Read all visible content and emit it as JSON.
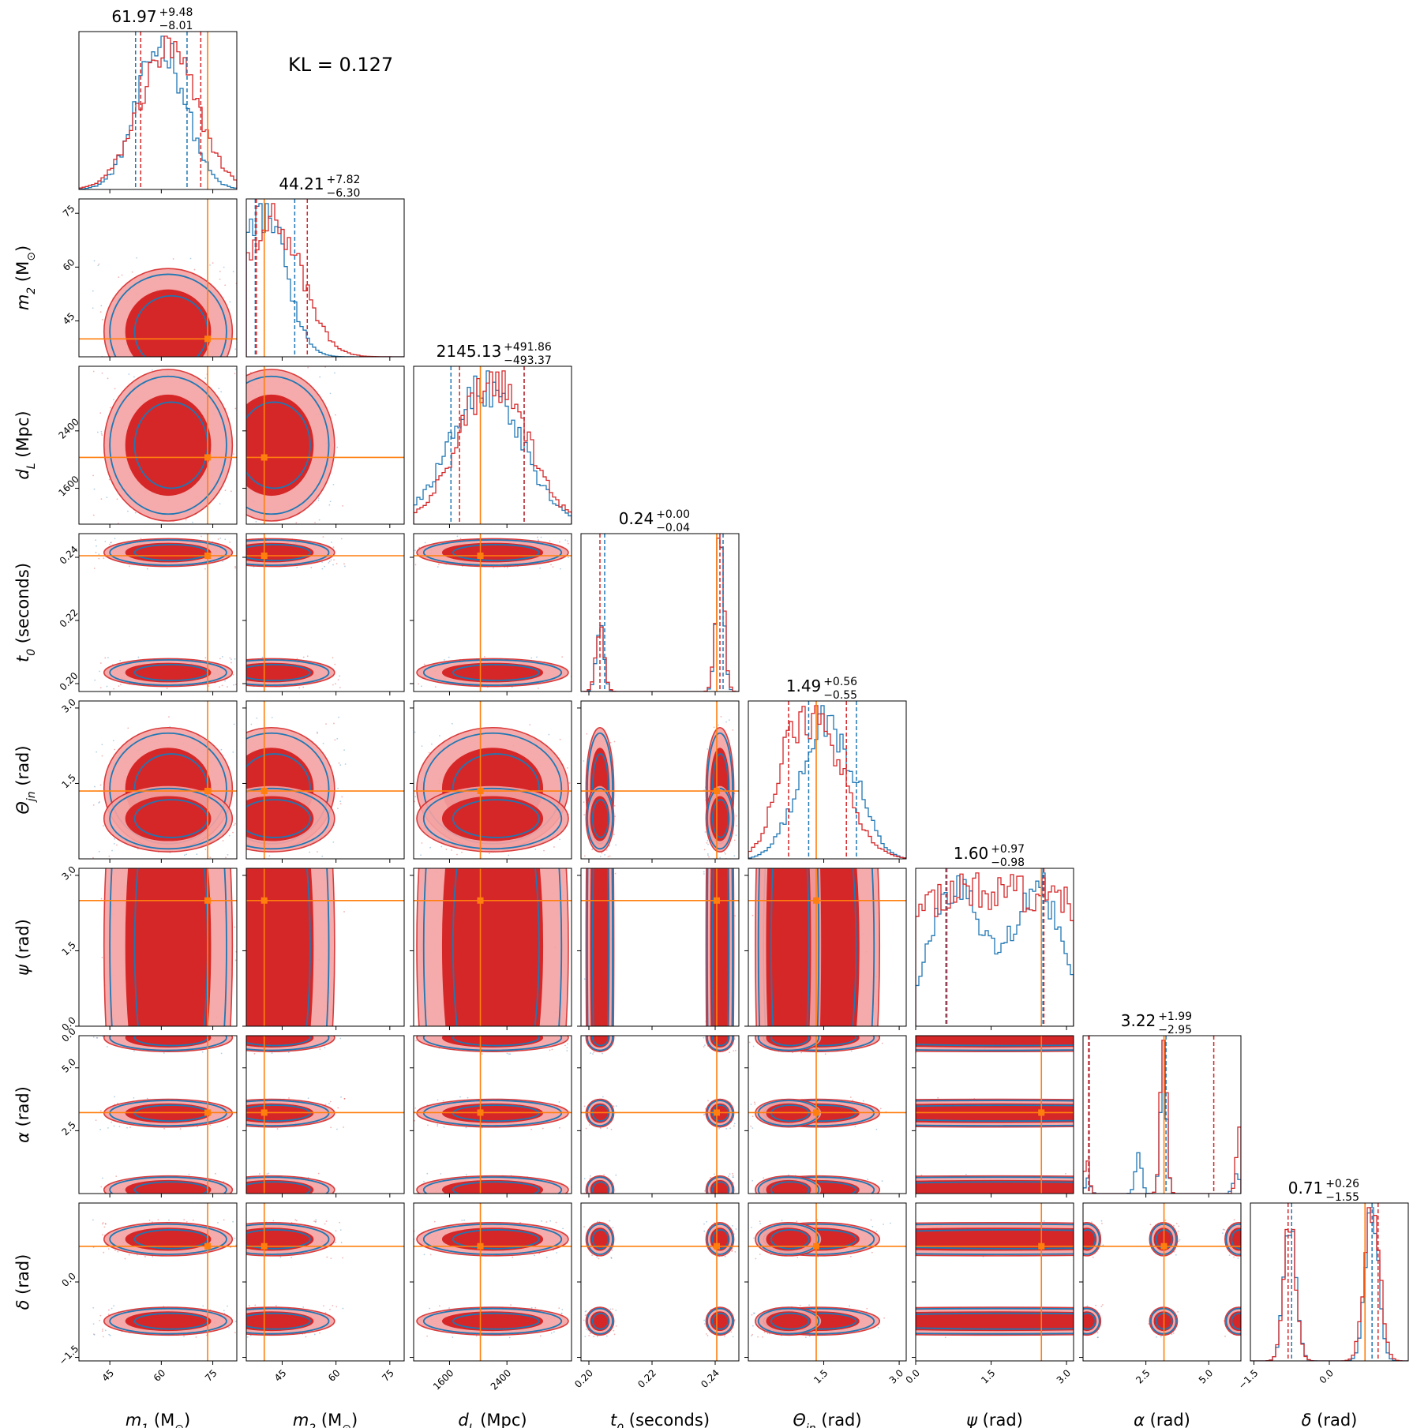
{
  "chart_data": {
    "type": "corner",
    "annotation": "KL = 0.127",
    "colors": {
      "series_a": "#1f77b4",
      "series_b": "#d62728",
      "truth": "#ff7f0e"
    },
    "parameters": [
      {
        "name": "m1",
        "label_main": "m",
        "label_sub": "1",
        "label_unit": " (M",
        "label_unit_sub": "⊙",
        "label_end": ")",
        "range": [
          36,
          82
        ],
        "ticks": [
          45,
          60,
          75
        ],
        "tick_labels": [
          "45",
          "60",
          "75"
        ],
        "truth": 73.5,
        "title_value": "61.97",
        "title_plus": "+9.48",
        "title_minus": "−8.01",
        "quantiles_a": [
          52.5,
          67.5
        ],
        "quantiles_b": [
          54.0,
          71.5
        ],
        "hist_a": [
          {
            "mu": 60,
            "sigma": 7
          }
        ],
        "hist_b": [
          {
            "mu": 62,
            "sigma": 8.5
          }
        ],
        "mode": "gauss"
      },
      {
        "name": "m2",
        "label_main": "m",
        "label_sub": "2",
        "label_unit": " (M",
        "label_unit_sub": "⊙",
        "label_end": ")",
        "range": [
          35,
          79
        ],
        "ticks": [
          45,
          60,
          75
        ],
        "tick_labels": [
          "45",
          "60",
          "75"
        ],
        "truth": 40,
        "title_value": "44.21",
        "title_plus": "+7.82",
        "title_minus": "−6.30",
        "quantiles_a": [
          37.5,
          48.5
        ],
        "quantiles_b": [
          37.8,
          52.0
        ],
        "hist_a": [
          {
            "mu": 40,
            "sigma": 6
          }
        ],
        "hist_b": [
          {
            "mu": 42,
            "sigma": 8
          }
        ],
        "mode": "gauss"
      },
      {
        "name": "dL",
        "label_main": "d",
        "label_sub": "L",
        "label_unit": " (Mpc)",
        "label_unit_sub": "",
        "label_end": "",
        "range": [
          1100,
          3300
        ],
        "ticks": [
          1600,
          2400
        ],
        "tick_labels": [
          "1600",
          "2400"
        ],
        "truth": 2030,
        "title_value": "2145.13",
        "title_plus": "+491.86",
        "title_minus": "−493.37",
        "quantiles_a": [
          1620,
          2640
        ],
        "quantiles_b": [
          1740,
          2640
        ],
        "hist_a": [
          {
            "mu": 2100,
            "sigma": 500
          }
        ],
        "hist_b": [
          {
            "mu": 2200,
            "sigma": 480
          }
        ],
        "mode": "gauss"
      },
      {
        "name": "t0",
        "label_main": "t",
        "label_sub": "0",
        "label_unit": " (seconds)",
        "label_unit_sub": "",
        "label_end": "",
        "range": [
          0.1975,
          0.2475
        ],
        "ticks": [
          0.2,
          0.22,
          0.24
        ],
        "tick_labels": [
          "0.20",
          "0.22",
          "0.24"
        ],
        "truth": 0.2405,
        "title_value": "0.24",
        "title_plus": "+0.00",
        "title_minus": "−0.04",
        "quantiles_a": [
          0.205,
          0.2425
        ],
        "quantiles_b": [
          0.2035,
          0.2415
        ],
        "hist_a": [
          {
            "mu": 0.2035,
            "sigma": 0.0012,
            "w": 0.42
          },
          {
            "mu": 0.2415,
            "sigma": 0.0012,
            "w": 1.0
          }
        ],
        "hist_b": [
          {
            "mu": 0.2035,
            "sigma": 0.0013,
            "w": 0.4
          },
          {
            "mu": 0.2415,
            "sigma": 0.0013,
            "w": 1.0
          }
        ],
        "mode": "multi"
      },
      {
        "name": "theta_jn",
        "label_main": "Θ",
        "label_sub": "jn",
        "label_unit": " (rad)",
        "label_unit_sub": "",
        "label_end": "",
        "range": [
          0,
          3.14
        ],
        "ticks": [
          1.5,
          3.0
        ],
        "tick_labels": [
          "1.5",
          "3.0"
        ],
        "truth": 1.35,
        "title_value": "1.49",
        "title_plus": "+0.56",
        "title_minus": "−0.55",
        "quantiles_a": [
          1.2,
          2.15
        ],
        "quantiles_b": [
          0.8,
          1.95
        ],
        "hist_a": [
          {
            "mu": 1.45,
            "sigma": 0.35,
            "w": 1.0
          },
          {
            "mu": 2.1,
            "sigma": 0.35,
            "w": 0.5
          },
          {
            "mu": 0.8,
            "sigma": 0.3,
            "w": 0.2
          }
        ],
        "hist_b": [
          {
            "mu": 1.4,
            "sigma": 0.55,
            "w": 1.0
          },
          {
            "mu": 0.8,
            "sigma": 0.3,
            "w": 0.4
          }
        ],
        "mode": "multi"
      },
      {
        "name": "psi",
        "label_main": "ψ",
        "label_sub": "",
        "label_unit": " (rad)",
        "label_unit_sub": "",
        "label_end": "",
        "range": [
          0,
          3.14
        ],
        "ticks": [
          0.0,
          1.5,
          3.0
        ],
        "tick_labels": [
          "0.0",
          "1.5",
          "3.0"
        ],
        "truth": 2.5,
        "title_value": "1.60",
        "title_plus": "+0.97",
        "title_minus": "−0.98",
        "quantiles_a": [
          0.6,
          2.53
        ],
        "quantiles_b": [
          0.62,
          2.55
        ],
        "hist_a": [
          {
            "mu": 0.8,
            "sigma": 0.5,
            "w": 1.0
          },
          {
            "mu": 2.4,
            "sigma": 0.5,
            "w": 1.0
          }
        ],
        "hist_b": [
          {
            "mu": 1.6,
            "sigma": 3.0,
            "w": 1.0
          }
        ],
        "mode": "multi"
      },
      {
        "name": "alpha",
        "label_main": "α",
        "label_sub": "",
        "label_unit": " (rad)",
        "label_unit_sub": "",
        "label_end": "",
        "range": [
          0,
          6.28
        ],
        "ticks": [
          2.5,
          5.0
        ],
        "tick_labels": [
          "2.5",
          "5.0"
        ],
        "top_tick_label": "0.0",
        "truth": 3.22,
        "title_value": "3.22",
        "title_plus": "+1.99",
        "title_minus": "−2.95",
        "quantiles_a": [
          0.25,
          3.3
        ],
        "quantiles_b": [
          0.22,
          5.2
        ],
        "hist_a": [
          {
            "mu": 3.2,
            "sigma": 0.12,
            "w": 1.0
          },
          {
            "mu": 2.2,
            "sigma": 0.12,
            "w": 0.3
          },
          {
            "mu": 6.1,
            "sigma": 0.12,
            "w": 0.15
          },
          {
            "mu": 0.2,
            "sigma": 0.1,
            "w": 0.1
          }
        ],
        "hist_b": [
          {
            "mu": 3.2,
            "sigma": 0.12,
            "w": 1.0
          },
          {
            "mu": 6.2,
            "sigma": 0.1,
            "w": 0.45
          },
          {
            "mu": 0.15,
            "sigma": 0.1,
            "w": 0.2
          }
        ],
        "mode": "multi"
      },
      {
        "name": "delta",
        "label_main": "δ",
        "label_sub": "",
        "label_unit": " (rad)",
        "label_unit_sub": "",
        "label_end": "",
        "range": [
          -1.57,
          1.57
        ],
        "ticks": [
          -1.5,
          0.0
        ],
        "tick_labels": [
          "−1.5",
          "0.0"
        ],
        "truth": 0.71,
        "title_value": "0.71",
        "title_plus": "+0.26",
        "title_minus": "−1.55",
        "quantiles_a": [
          -0.75,
          0.85
        ],
        "quantiles_b": [
          -0.82,
          0.97
        ],
        "hist_a": [
          {
            "mu": -0.78,
            "sigma": 0.12,
            "w": 0.95
          },
          {
            "mu": 0.85,
            "sigma": 0.13,
            "w": 1.0
          }
        ],
        "hist_b": [
          {
            "mu": -0.78,
            "sigma": 0.12,
            "w": 0.85
          },
          {
            "mu": 0.85,
            "sigma": 0.15,
            "w": 1.0
          }
        ],
        "mode": "multi"
      }
    ],
    "bin_count": 50
  }
}
